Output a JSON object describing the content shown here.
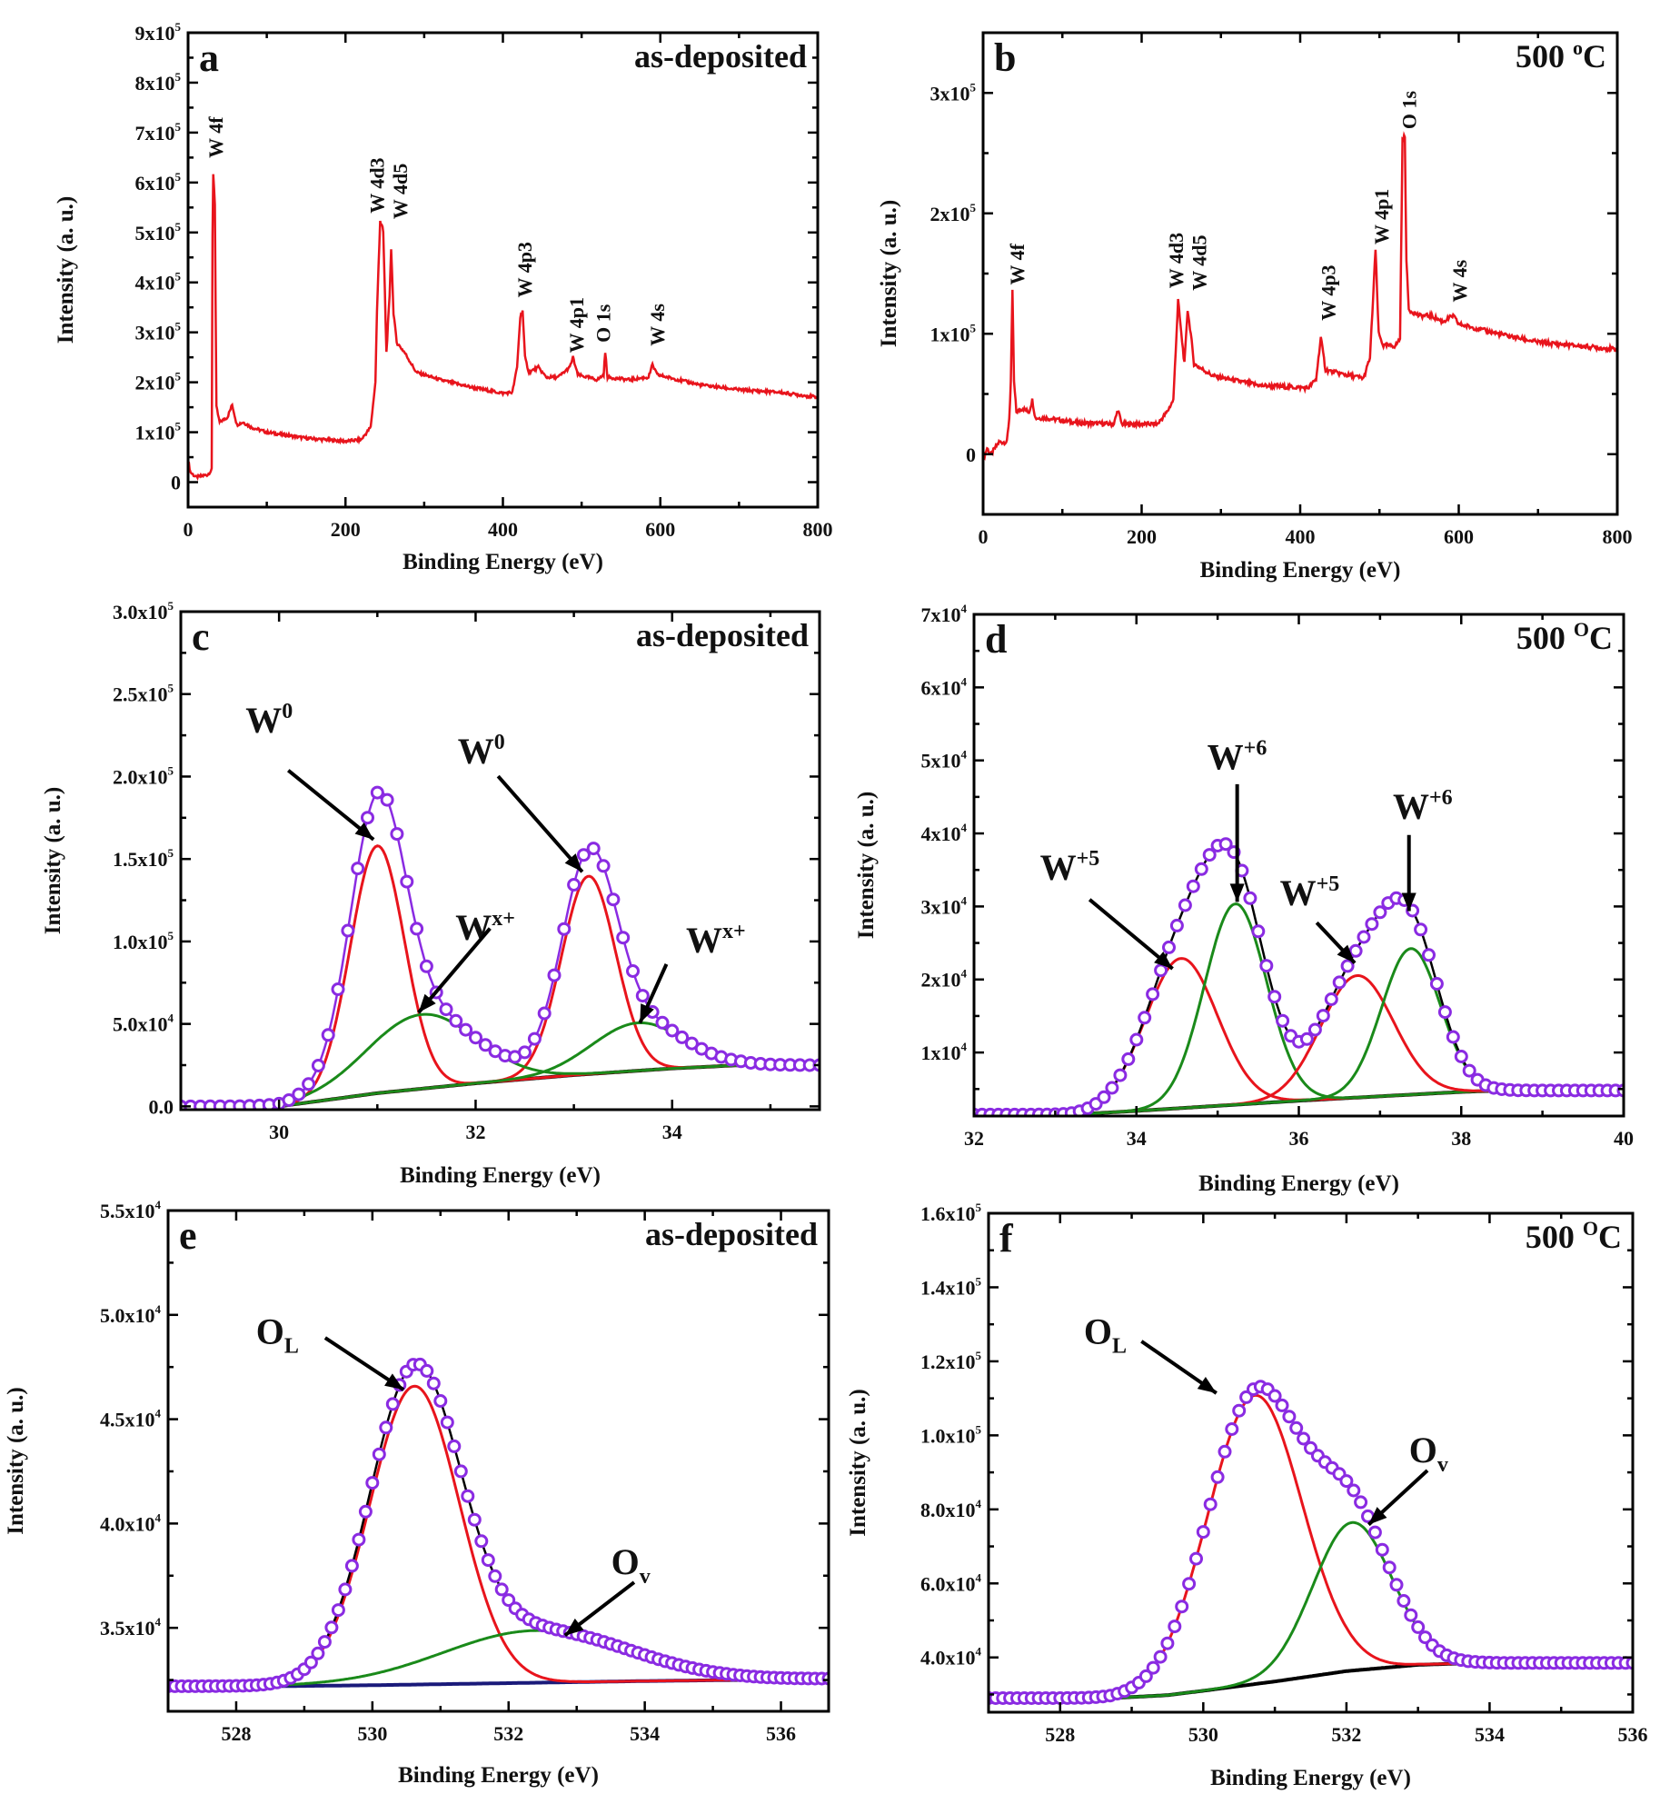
{
  "chart_data": [
    {
      "panel": "a",
      "type": "line",
      "condition": {
        "base": "as-deposited"
      },
      "xlabel": "Binding Energy (eV)",
      "ylabel": "Intensity (a. u.)",
      "xlim": [
        0,
        800
      ],
      "ylim": [
        -50000,
        900000
      ],
      "grid": false,
      "xticks": [
        {
          "v": 0,
          "label": "0"
        },
        {
          "v": 200,
          "label": "200"
        },
        {
          "v": 400,
          "label": "400"
        },
        {
          "v": 600,
          "label": "600"
        },
        {
          "v": 800,
          "label": "800"
        }
      ],
      "yticks": [
        {
          "v": 0,
          "base": "0",
          "exp": ""
        },
        {
          "v": 100000,
          "base": "1x10",
          "exp": "5"
        },
        {
          "v": 200000,
          "base": "2x10",
          "exp": "5"
        },
        {
          "v": 300000,
          "base": "3x10",
          "exp": "5"
        },
        {
          "v": 400000,
          "base": "4x10",
          "exp": "5"
        },
        {
          "v": 500000,
          "base": "5x10",
          "exp": "5"
        },
        {
          "v": 600000,
          "base": "6x10",
          "exp": "5"
        },
        {
          "v": 700000,
          "base": "7x10",
          "exp": "5"
        },
        {
          "v": 800000,
          "base": "8x10",
          "exp": "5"
        },
        {
          "v": 900000,
          "base": "9x10",
          "exp": "5"
        }
      ],
      "series": [
        {
          "color": "#e8141c",
          "x": [
            0,
            3,
            10,
            25,
            30,
            31,
            32,
            34,
            36,
            40,
            50,
            56,
            62,
            70,
            80,
            100,
            150,
            200,
            220,
            232,
            238,
            240,
            244,
            248,
            252,
            256,
            258,
            261,
            265,
            275,
            290,
            320,
            360,
            400,
            412,
            418,
            422,
            425,
            428,
            433,
            445,
            455,
            470,
            485,
            489,
            495,
            520,
            528,
            530,
            533,
            560,
            585,
            590,
            596,
            650,
            700,
            750,
            800
          ],
          "y": [
            45000,
            20000,
            10000,
            15000,
            25000,
            490000,
            620000,
            560000,
            150000,
            120000,
            130000,
            155000,
            115000,
            120000,
            110000,
            100000,
            88000,
            82000,
            85000,
            110000,
            200000,
            340000,
            525000,
            500000,
            260000,
            370000,
            470000,
            340000,
            280000,
            260000,
            220000,
            205000,
            190000,
            178000,
            180000,
            230000,
            330000,
            345000,
            250000,
            220000,
            230000,
            210000,
            210000,
            230000,
            250000,
            215000,
            205000,
            215000,
            260000,
            210000,
            205000,
            210000,
            235000,
            215000,
            195000,
            185000,
            180000,
            170000
          ]
        }
      ],
      "peak_labels": [
        "W 4f",
        "W 4d3",
        "W 4d5",
        "W 4p3",
        "W 4p1",
        "O 1s",
        "W 4s"
      ]
    },
    {
      "panel": "b",
      "type": "line",
      "condition": {
        "base": "500 ",
        "sup": "o",
        "tail": "C"
      },
      "xlabel": "Binding Energy (eV)",
      "ylabel": "Intensity (a. u.)",
      "xlim": [
        0,
        800
      ],
      "ylim": [
        -50000,
        350000
      ],
      "grid": false,
      "xticks": [
        {
          "v": 0,
          "label": "0"
        },
        {
          "v": 200,
          "label": "200"
        },
        {
          "v": 400,
          "label": "400"
        },
        {
          "v": 600,
          "label": "600"
        },
        {
          "v": 800,
          "label": "800"
        }
      ],
      "yticks": [
        {
          "v": 0,
          "base": "0",
          "exp": ""
        },
        {
          "v": 100000,
          "base": "1x10",
          "exp": "5"
        },
        {
          "v": 200000,
          "base": "2x10",
          "exp": "5"
        },
        {
          "v": 300000,
          "base": "3x10",
          "exp": "5"
        }
      ],
      "series": [
        {
          "color": "#e8141c",
          "x": [
            0,
            5,
            10,
            20,
            30,
            33,
            35,
            37,
            39,
            42,
            50,
            58,
            62,
            66,
            80,
            120,
            165,
            170,
            175,
            220,
            232,
            240,
            246,
            250,
            254,
            258,
            262,
            266,
            290,
            350,
            410,
            420,
            426,
            432,
            450,
            480,
            488,
            492,
            495,
            499,
            505,
            520,
            526,
            529,
            532,
            534,
            537,
            550,
            565,
            580,
            593,
            600,
            650,
            700,
            750,
            800
          ],
          "y": [
            -5000,
            5000,
            0,
            10000,
            10000,
            30000,
            60000,
            135000,
            60000,
            35000,
            38000,
            35000,
            45000,
            30000,
            30000,
            26000,
            25000,
            37000,
            25000,
            25000,
            35000,
            45000,
            128000,
            100000,
            75000,
            120000,
            100000,
            75000,
            65000,
            57000,
            55000,
            62000,
            97000,
            70000,
            67000,
            63000,
            80000,
            130000,
            170000,
            100000,
            90000,
            90000,
            96000,
            260000,
            265000,
            160000,
            120000,
            115000,
            115000,
            110000,
            115000,
            108000,
            100000,
            93000,
            90000,
            87000
          ]
        }
      ],
      "peak_labels": [
        "W 4f",
        "W 4d3",
        "W 4d5",
        "W 4p3",
        "W 4p1",
        "O 1s",
        "W 4s"
      ]
    },
    {
      "panel": "c",
      "type": "line",
      "condition": {
        "base": "as-deposited"
      },
      "xlabel": "Binding Energy (eV)",
      "ylabel": "Intensity (a. u.)",
      "xlim": [
        29,
        35.5
      ],
      "ylim": [
        -2000,
        300000
      ],
      "grid": false,
      "xticks": [
        {
          "v": 30,
          "label": "30"
        },
        {
          "v": 32,
          "label": "32"
        },
        {
          "v": 34,
          "label": "34"
        }
      ],
      "yticks": [
        {
          "v": 0,
          "base": "0.0",
          "exp": ""
        },
        {
          "v": 50000,
          "base": "5.0x10",
          "exp": "4"
        },
        {
          "v": 100000,
          "base": "1.0x10",
          "exp": "5"
        },
        {
          "v": 150000,
          "base": "1.5x10",
          "exp": "5"
        },
        {
          "v": 200000,
          "base": "2.0x10",
          "exp": "5"
        },
        {
          "v": 250000,
          "base": "2.5x10",
          "exp": "5"
        },
        {
          "v": 300000,
          "base": "3.0x10",
          "exp": "5"
        }
      ],
      "experimental": {
        "marker": "open-circle",
        "color": "#8a2be2",
        "envelope_color": "#8a2be2"
      },
      "background": {
        "color": "#000000",
        "x": [
          30.0,
          31,
          32,
          33,
          34,
          34.7
        ],
        "y": [
          0,
          8000,
          14000,
          19000,
          23000,
          25000
        ]
      },
      "components": [
        {
          "color": "#e8141c",
          "center": 31.0,
          "amplitude": 150000,
          "fwhm": 0.65
        },
        {
          "color": "#e8141c",
          "center": 33.15,
          "amplitude": 120000,
          "fwhm": 0.65
        },
        {
          "color": "#1a8a1a",
          "center": 31.45,
          "amplitude": 45000,
          "fwhm": 1.3
        },
        {
          "color": "#1a8a1a",
          "center": 33.65,
          "amplitude": 29000,
          "fwhm": 1.1
        }
      ],
      "annotations": [
        {
          "base": "W",
          "sup": "0"
        },
        {
          "base": "W",
          "sup": "0"
        },
        {
          "base": "W",
          "sup": "x+"
        },
        {
          "base": "W",
          "sup": "x+"
        }
      ]
    },
    {
      "panel": "d",
      "type": "line",
      "condition": {
        "base": "500 ",
        "sup": "O",
        "tail": "C"
      },
      "xlabel": "Binding Energy (eV)",
      "ylabel": "Intensity (a. u.)",
      "xlim": [
        32,
        40
      ],
      "ylim": [
        1300,
        70000
      ],
      "grid": false,
      "xticks": [
        {
          "v": 32,
          "label": "32"
        },
        {
          "v": 34,
          "label": "34"
        },
        {
          "v": 36,
          "label": "36"
        },
        {
          "v": 38,
          "label": "38"
        },
        {
          "v": 40,
          "label": "40"
        }
      ],
      "yticks": [
        {
          "v": 10000,
          "base": "1x10",
          "exp": "4"
        },
        {
          "v": 20000,
          "base": "2x10",
          "exp": "4"
        },
        {
          "v": 30000,
          "base": "3x10",
          "exp": "4"
        },
        {
          "v": 40000,
          "base": "4x10",
          "exp": "4"
        },
        {
          "v": 50000,
          "base": "5x10",
          "exp": "4"
        },
        {
          "v": 60000,
          "base": "6x10",
          "exp": "4"
        },
        {
          "v": 70000,
          "base": "7x10",
          "exp": "4"
        }
      ],
      "experimental": {
        "marker": "open-circle",
        "color": "#8a2be2",
        "envelope_color": "#000000"
      },
      "background": {
        "color": "#000000",
        "x": [
          33.2,
          34,
          35,
          36,
          37,
          38,
          38.5,
          40
        ],
        "y": [
          1500,
          2000,
          2700,
          3400,
          4000,
          4600,
          4800,
          4800
        ]
      },
      "components": [
        {
          "color": "#e8141c",
          "center": 34.55,
          "amplitude": 20500,
          "fwhm": 1.05
        },
        {
          "color": "#1a8a1a",
          "center": 35.22,
          "amplitude": 27500,
          "fwhm": 0.9
        },
        {
          "color": "#e8141c",
          "center": 36.72,
          "amplitude": 16700,
          "fwhm": 1.05
        },
        {
          "color": "#1a8a1a",
          "center": 37.38,
          "amplitude": 20000,
          "fwhm": 0.85
        }
      ],
      "annotations": [
        {
          "base": "W",
          "sup": "+5"
        },
        {
          "base": "W",
          "sup": "+6"
        },
        {
          "base": "W",
          "sup": "+5"
        },
        {
          "base": "W",
          "sup": "+6"
        }
      ]
    },
    {
      "panel": "e",
      "type": "line",
      "condition": {
        "base": "as-deposited"
      },
      "xlabel": "Binding Energy (eV)",
      "ylabel": "Intensity (a. u.)",
      "xlim": [
        527,
        536.7
      ],
      "ylim": [
        31000,
        55000
      ],
      "grid": false,
      "xticks": [
        {
          "v": 528,
          "label": "528"
        },
        {
          "v": 530,
          "label": "530"
        },
        {
          "v": 532,
          "label": "532"
        },
        {
          "v": 534,
          "label": "534"
        },
        {
          "v": 536,
          "label": "536"
        }
      ],
      "yticks": [
        {
          "v": 35000,
          "base": "3.5x10",
          "exp": "4"
        },
        {
          "v": 40000,
          "base": "4.0x10",
          "exp": "4"
        },
        {
          "v": 45000,
          "base": "4.5x10",
          "exp": "4"
        },
        {
          "v": 50000,
          "base": "5.0x10",
          "exp": "4"
        },
        {
          "v": 55000,
          "base": "5.5x10",
          "exp": "4"
        }
      ],
      "experimental": {
        "marker": "open-circle",
        "color": "#8a2be2",
        "envelope_color": "#000000"
      },
      "background": {
        "color": "#1a1a7a",
        "x": [
          528.5,
          530,
          532,
          534,
          536.7
        ],
        "y": [
          32200,
          32250,
          32350,
          32450,
          32550
        ]
      },
      "components": [
        {
          "color": "#e8141c",
          "center": 530.62,
          "amplitude": 14300,
          "fwhm": 1.55
        },
        {
          "color": "#1a8a1a",
          "center": 532.4,
          "amplitude": 2500,
          "fwhm": 3.2
        }
      ],
      "annotations": [
        {
          "base": "O",
          "sub": "L"
        },
        {
          "base": "O",
          "sub": "v"
        }
      ]
    },
    {
      "panel": "f",
      "type": "line",
      "condition": {
        "base": "500 ",
        "sup": "O",
        "tail": "C"
      },
      "xlabel": "Binding Energy (eV)",
      "ylabel": "Intensity (a. u.)",
      "xlim": [
        527,
        536
      ],
      "ylim": [
        25200,
        160000
      ],
      "grid": false,
      "xticks": [
        {
          "v": 528,
          "label": "528"
        },
        {
          "v": 530,
          "label": "530"
        },
        {
          "v": 532,
          "label": "532"
        },
        {
          "v": 534,
          "label": "534"
        },
        {
          "v": 536,
          "label": "536"
        }
      ],
      "yticks": [
        {
          "v": 40000,
          "base": "4.0x10",
          "exp": "4"
        },
        {
          "v": 60000,
          "base": "6.0x10",
          "exp": "4"
        },
        {
          "v": 80000,
          "base": "8.0x10",
          "exp": "4"
        },
        {
          "v": 100000,
          "base": "1.0x10",
          "exp": "5"
        },
        {
          "v": 120000,
          "base": "1.2x10",
          "exp": "5"
        },
        {
          "v": 140000,
          "base": "1.4x10",
          "exp": "5"
        },
        {
          "v": 160000,
          "base": "1.6x10",
          "exp": "5"
        }
      ],
      "experimental": {
        "marker": "open-circle",
        "color": "#8a2be2"
      },
      "background": {
        "color": "#000000",
        "x": [
          528.7,
          529.5,
          530,
          531,
          532,
          533,
          533.8
        ],
        "y": [
          29000,
          29800,
          31000,
          33500,
          36300,
          38000,
          38500
        ]
      },
      "components": [
        {
          "color": "#e8141c",
          "center": 530.72,
          "amplitude": 78000,
          "fwhm": 1.55
        },
        {
          "color": "#1a8a1a",
          "center": 532.08,
          "amplitude": 40000,
          "fwhm": 1.3
        }
      ],
      "annotations": [
        {
          "base": "O",
          "sub": "L"
        },
        {
          "base": "O",
          "sub": "v"
        }
      ]
    }
  ]
}
